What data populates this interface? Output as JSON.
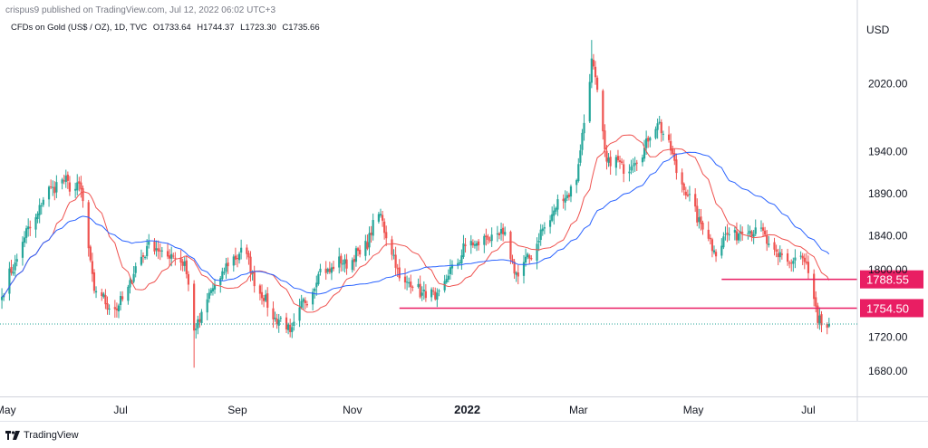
{
  "header": {
    "publisher": "crispus9 published on TradingView.com, Jul 12, 2022 06:02 UTC+3",
    "symbol": "CFDs on Gold (US$ / OZ), 1D, TVC",
    "ohlc_o": "O1733.64",
    "ohlc_h": "H1744.37",
    "ohlc_l": "L1723.30",
    "ohlc_c": "C1735.66",
    "currency": "USD"
  },
  "footer": {
    "brand": "TradingView"
  },
  "colors": {
    "up": "#26a69a",
    "down": "#ef5350",
    "ma_fast": "#ef5350",
    "ma_slow": "#2962ff",
    "level_line": "#e91e63",
    "last_price_line": "#26a69a"
  },
  "chart_data": {
    "type": "candlestick",
    "title": "CFDs on Gold (US$ / OZ), 1D, TVC",
    "ylabel": "USD",
    "ylim": [
      1650,
      2100
    ],
    "y_ticks": [
      "2020.00",
      "1940.00",
      "1890.00",
      "1840.00",
      "1800.00",
      "1720.00",
      "1680.00"
    ],
    "x_ticks": [
      "May",
      "Jul",
      "Sep",
      "Nov",
      "2022",
      "Mar",
      "May",
      "Jul"
    ],
    "x_tick_dates": [
      "2021-05-01",
      "2021-07-01",
      "2021-09-01",
      "2021-11-01",
      "2022-01-01",
      "2022-03-01",
      "2022-05-01",
      "2022-07-01"
    ],
    "x_range": [
      "2021-04-28",
      "2022-07-27"
    ],
    "legend": "none",
    "grid": false,
    "anchors": [
      [
        "2021-04-29",
        1768
      ],
      [
        "2021-05-10",
        1833
      ],
      [
        "2021-05-25",
        1898
      ],
      [
        "2021-06-01",
        1905
      ],
      [
        "2021-06-10",
        1895
      ],
      [
        "2021-06-17",
        1775
      ],
      [
        "2021-06-29",
        1752
      ],
      [
        "2021-07-15",
        1828
      ],
      [
        "2021-08-04",
        1810
      ],
      [
        "2021-08-09",
        1728
      ],
      [
        "2021-08-20",
        1782
      ],
      [
        "2021-09-03",
        1826
      ],
      [
        "2021-09-17",
        1755
      ],
      [
        "2021-09-29",
        1726
      ],
      [
        "2021-10-14",
        1795
      ],
      [
        "2021-11-05",
        1818
      ],
      [
        "2021-11-16",
        1866
      ],
      [
        "2021-11-26",
        1790
      ],
      [
        "2021-12-15",
        1765
      ],
      [
        "2021-12-31",
        1828
      ],
      [
        "2022-01-20",
        1842
      ],
      [
        "2022-01-28",
        1792
      ],
      [
        "2022-02-16",
        1870
      ],
      [
        "2022-02-28",
        1906
      ],
      [
        "2022-03-08",
        2050
      ],
      [
        "2022-03-16",
        1928
      ],
      [
        "2022-03-29",
        1922
      ],
      [
        "2022-04-13",
        1975
      ],
      [
        "2022-04-25",
        1901
      ],
      [
        "2022-05-12",
        1823
      ],
      [
        "2022-05-20",
        1842
      ],
      [
        "2022-06-03",
        1850
      ],
      [
        "2022-06-15",
        1815
      ],
      [
        "2022-06-30",
        1808
      ],
      [
        "2022-07-06",
        1737
      ],
      [
        "2022-07-12",
        1735
      ]
    ],
    "extremes": [
      {
        "date": "2021-08-09",
        "low": 1684
      },
      {
        "date": "2022-03-08",
        "high": 2072
      }
    ],
    "series": [
      {
        "type": "moving-average",
        "period": 20
      },
      {
        "type": "moving-average",
        "period": 50
      }
    ],
    "levels": [
      {
        "value": 1788.55,
        "label": "1788.55",
        "from": "2022-05-16"
      },
      {
        "value": 1754.5,
        "label": "1754.50",
        "from": "2021-11-26"
      }
    ],
    "last_price": 1735.66
  }
}
